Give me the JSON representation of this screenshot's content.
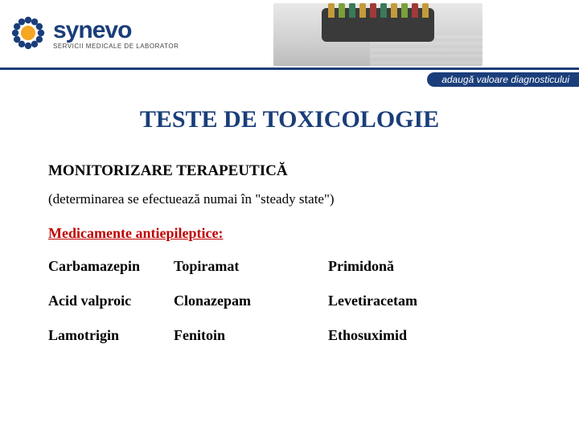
{
  "brand": {
    "name": "synevo",
    "name_color": "#1a3e7a",
    "subtitle": "SERVICII MEDICALE DE LABORATOR",
    "icon_outer": "#1a3e7a",
    "icon_inner": "#f5a623",
    "tagline": "adaugă valoare diagnosticului",
    "tagline_bg": "#1a3e7a",
    "rule_color": "#1a3e7a"
  },
  "title": {
    "text": "TESTE DE TOXICOLOGIE",
    "color": "#1a3e7a"
  },
  "subtitle": "MONITORIZARE TERAPEUTICĂ",
  "note": "(determinarea se efectuează numai în \"steady state\")",
  "section": {
    "label": "Medicamente antiepileptice:",
    "color": "#c00000"
  },
  "meds": {
    "rows": [
      [
        "Carbamazepin",
        "Topiramat",
        "Primidonă"
      ],
      [
        "Acid valproic",
        "Clonazepam",
        "Levetiracetam"
      ],
      [
        "Lamotrigin",
        "Fenitoin",
        "Ethosuximid"
      ]
    ]
  },
  "vial_colors": [
    "#c49a3a",
    "#7aa03a",
    "#3a7a5a",
    "#c49a3a",
    "#a03a3a",
    "#3a7a5a",
    "#c49a3a",
    "#7aa03a",
    "#a03a3a",
    "#c49a3a"
  ]
}
